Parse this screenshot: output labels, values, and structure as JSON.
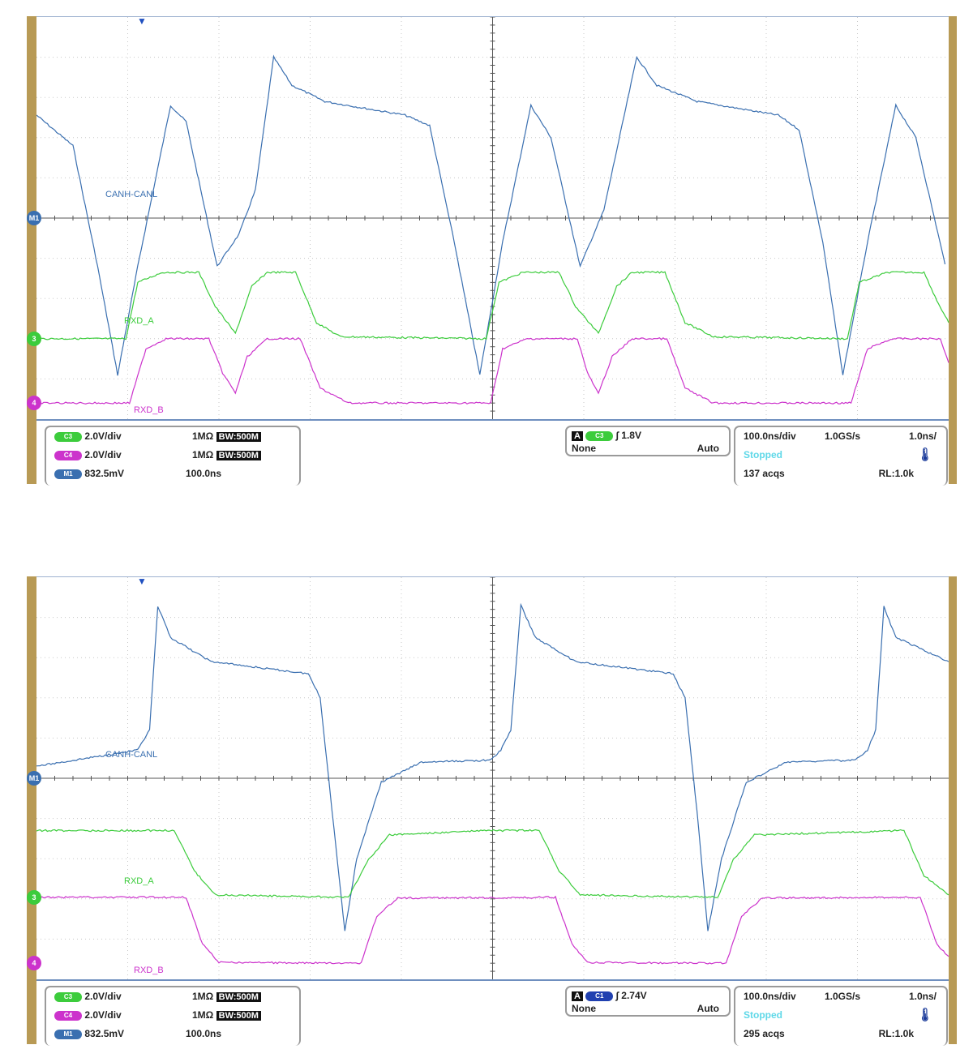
{
  "colors": {
    "ch3": "#3ccc3c",
    "ch4": "#cc33cc",
    "m1": "#3a6fb0",
    "trigger_label": "#5fd8e8",
    "frame": "#b89a55"
  },
  "chart_data": [
    {
      "type": "line",
      "xunit": "ns",
      "yunit": "div",
      "xlim": [
        0,
        1000
      ],
      "ylim": [
        -5,
        5
      ],
      "grid": true,
      "series": [
        {
          "name": "CANH-CANL",
          "channel": "M1",
          "points": [
            [
              0,
              2.56
            ],
            [
              40,
              1.8
            ],
            [
              67,
              -1.2
            ],
            [
              89,
              -3.9
            ],
            [
              111,
              -1.2
            ],
            [
              147,
              2.8
            ],
            [
              164,
              2.4
            ],
            [
              198,
              -1.2
            ],
            [
              222,
              -0.4
            ],
            [
              240,
              0.7
            ],
            [
              260,
              4.0
            ],
            [
              280,
              3.3
            ],
            [
              316,
              2.9
            ],
            [
              404,
              2.56
            ],
            [
              431,
              2.3
            ],
            [
              458,
              -0.6
            ],
            [
              486,
              -3.9
            ],
            [
              511,
              -0.6
            ],
            [
              542,
              2.8
            ],
            [
              564,
              2.0
            ],
            [
              596,
              -1.2
            ],
            [
              622,
              0.2
            ],
            [
              658,
              4.0
            ],
            [
              680,
              3.3
            ],
            [
              724,
              2.9
            ],
            [
              813,
              2.56
            ],
            [
              836,
              2.2
            ],
            [
              862,
              -0.6
            ],
            [
              884,
              -3.9
            ],
            [
              911,
              -0.6
            ],
            [
              942,
              2.8
            ],
            [
              964,
              2.0
            ],
            [
              996,
              -1.15
            ]
          ]
        },
        {
          "name": "RXD_A",
          "channel": "C3",
          "points": [
            [
              0,
              -3
            ],
            [
              98,
              -3
            ],
            [
              111,
              -1.6
            ],
            [
              138,
              -1.35
            ],
            [
              178,
              -1.35
            ],
            [
              196,
              -2.2
            ],
            [
              218,
              -2.87
            ],
            [
              236,
              -1.7
            ],
            [
              253,
              -1.35
            ],
            [
              284,
              -1.35
            ],
            [
              307,
              -2.6
            ],
            [
              333,
              -2.95
            ],
            [
              493,
              -3
            ],
            [
              507,
              -1.6
            ],
            [
              533,
              -1.35
            ],
            [
              573,
              -1.35
            ],
            [
              591,
              -2.2
            ],
            [
              616,
              -2.87
            ],
            [
              636,
              -1.7
            ],
            [
              653,
              -1.35
            ],
            [
              689,
              -1.35
            ],
            [
              711,
              -2.6
            ],
            [
              742,
              -2.95
            ],
            [
              889,
              -3
            ],
            [
              902,
              -1.6
            ],
            [
              933,
              -1.35
            ],
            [
              973,
              -1.35
            ],
            [
              987,
              -2.05
            ],
            [
              1000,
              -2.6
            ]
          ]
        },
        {
          "name": "RXD_B",
          "channel": "C4",
          "points": [
            [
              0,
              -4.6
            ],
            [
              102,
              -4.6
            ],
            [
              120,
              -3.25
            ],
            [
              142,
              -3
            ],
            [
              189,
              -3
            ],
            [
              204,
              -3.85
            ],
            [
              218,
              -4.35
            ],
            [
              231,
              -3.45
            ],
            [
              253,
              -3
            ],
            [
              289,
              -3
            ],
            [
              311,
              -4.23
            ],
            [
              342,
              -4.6
            ],
            [
              498,
              -4.6
            ],
            [
              511,
              -3.25
            ],
            [
              538,
              -3
            ],
            [
              593,
              -3
            ],
            [
              604,
              -3.85
            ],
            [
              616,
              -4.37
            ],
            [
              631,
              -3.45
            ],
            [
              653,
              -3
            ],
            [
              691,
              -3
            ],
            [
              711,
              -4.23
            ],
            [
              742,
              -4.6
            ],
            [
              893,
              -4.6
            ],
            [
              911,
              -3.25
            ],
            [
              938,
              -3
            ],
            [
              991,
              -3
            ],
            [
              1000,
              -3.6
            ]
          ]
        }
      ]
    },
    {
      "type": "line",
      "xunit": "ns",
      "yunit": "div",
      "xlim": [
        0,
        1000
      ],
      "ylim": [
        -5,
        5
      ],
      "grid": true,
      "series": [
        {
          "name": "CANH-CANL",
          "channel": "M1",
          "points": [
            [
              0,
              0.3
            ],
            [
              111,
              0.7
            ],
            [
              124,
              1.2
            ],
            [
              133,
              4.27
            ],
            [
              147,
              3.5
            ],
            [
              191,
              2.9
            ],
            [
              298,
              2.6
            ],
            [
              311,
              2.0
            ],
            [
              324,
              -0.8
            ],
            [
              338,
              -3.8
            ],
            [
              351,
              -2.0
            ],
            [
              378,
              -0.1
            ],
            [
              422,
              0.4
            ],
            [
              498,
              0.45
            ],
            [
              509,
              0.7
            ],
            [
              520,
              1.2
            ],
            [
              531,
              4.3
            ],
            [
              547,
              3.5
            ],
            [
              591,
              2.9
            ],
            [
              698,
              2.6
            ],
            [
              711,
              2.0
            ],
            [
              724,
              -0.8
            ],
            [
              736,
              -3.8
            ],
            [
              751,
              -2.0
            ],
            [
              778,
              -0.1
            ],
            [
              822,
              0.4
            ],
            [
              898,
              0.45
            ],
            [
              911,
              0.7
            ],
            [
              920,
              1.2
            ],
            [
              929,
              4.27
            ],
            [
              942,
              3.5
            ],
            [
              1000,
              2.9
            ]
          ]
        },
        {
          "name": "RXD_A",
          "channel": "C3",
          "points": [
            [
              0,
              -1.3
            ],
            [
              151,
              -1.3
            ],
            [
              173,
              -2.3
            ],
            [
              196,
              -2.9
            ],
            [
              342,
              -2.96
            ],
            [
              364,
              -2.02
            ],
            [
              387,
              -1.41
            ],
            [
              493,
              -1.3
            ],
            [
              551,
              -1.3
            ],
            [
              573,
              -2.3
            ],
            [
              596,
              -2.9
            ],
            [
              747,
              -2.96
            ],
            [
              764,
              -2.02
            ],
            [
              787,
              -1.41
            ],
            [
              951,
              -1.3
            ],
            [
              973,
              -2.42
            ],
            [
              1000,
              -2.9
            ]
          ]
        },
        {
          "name": "RXD_B",
          "channel": "C4",
          "points": [
            [
              0,
              -2.96
            ],
            [
              164,
              -2.96
            ],
            [
              182,
              -4.13
            ],
            [
              200,
              -4.58
            ],
            [
              356,
              -4.6
            ],
            [
              373,
              -3.43
            ],
            [
              396,
              -2.98
            ],
            [
              569,
              -2.96
            ],
            [
              587,
              -4.13
            ],
            [
              604,
              -4.58
            ],
            [
              756,
              -4.6
            ],
            [
              773,
              -3.43
            ],
            [
              796,
              -2.98
            ],
            [
              969,
              -2.96
            ],
            [
              987,
              -4.13
            ],
            [
              1000,
              -4.43
            ]
          ]
        }
      ]
    }
  ],
  "scopes": [
    {
      "labels": {
        "canh": "CANH-CANL",
        "rxd_a": "RXD_A",
        "rxd_b": "RXD_B"
      },
      "markers": {
        "m1": "M1",
        "c3": "3",
        "c4": "4"
      },
      "ch3": {
        "badge": "C3",
        "scale": "2.0V/div",
        "imp": "1MΩ",
        "bw": "BW:500M"
      },
      "ch4": {
        "badge": "C4",
        "scale": "2.0V/div",
        "imp": "1MΩ",
        "bw": "BW:500M"
      },
      "m1": {
        "badge": "M1",
        "scale": "832.5mV",
        "pos": "100.0ns"
      },
      "trigger": {
        "badge": "C3",
        "level": "1.8V",
        "source": "None",
        "mode": "Auto",
        "slope": "∫"
      },
      "acq": {
        "timebase": "100.0ns/div",
        "rate": "1.0GS/s",
        "res": "1.0ns/",
        "state": "Stopped",
        "acqs": "137 acqs",
        "rl": "RL:1.0k"
      }
    },
    {
      "labels": {
        "canh": "CANH-CANL",
        "rxd_a": "RXD_A",
        "rxd_b": "RXD_B"
      },
      "markers": {
        "m1": "M1",
        "c3": "3",
        "c4": "4"
      },
      "ch3": {
        "badge": "C3",
        "scale": "2.0V/div",
        "imp": "1MΩ",
        "bw": "BW:500M"
      },
      "ch4": {
        "badge": "C4",
        "scale": "2.0V/div",
        "imp": "1MΩ",
        "bw": "BW:500M"
      },
      "m1": {
        "badge": "M1",
        "scale": "832.5mV",
        "pos": "100.0ns"
      },
      "trigger": {
        "badge": "C1",
        "level": "2.74V",
        "source": "None",
        "mode": "Auto",
        "slope": "∫"
      },
      "acq": {
        "timebase": "100.0ns/div",
        "rate": "1.0GS/s",
        "res": "1.0ns/",
        "state": "Stopped",
        "acqs": "295 acqs",
        "rl": "RL:1.0k"
      }
    }
  ]
}
